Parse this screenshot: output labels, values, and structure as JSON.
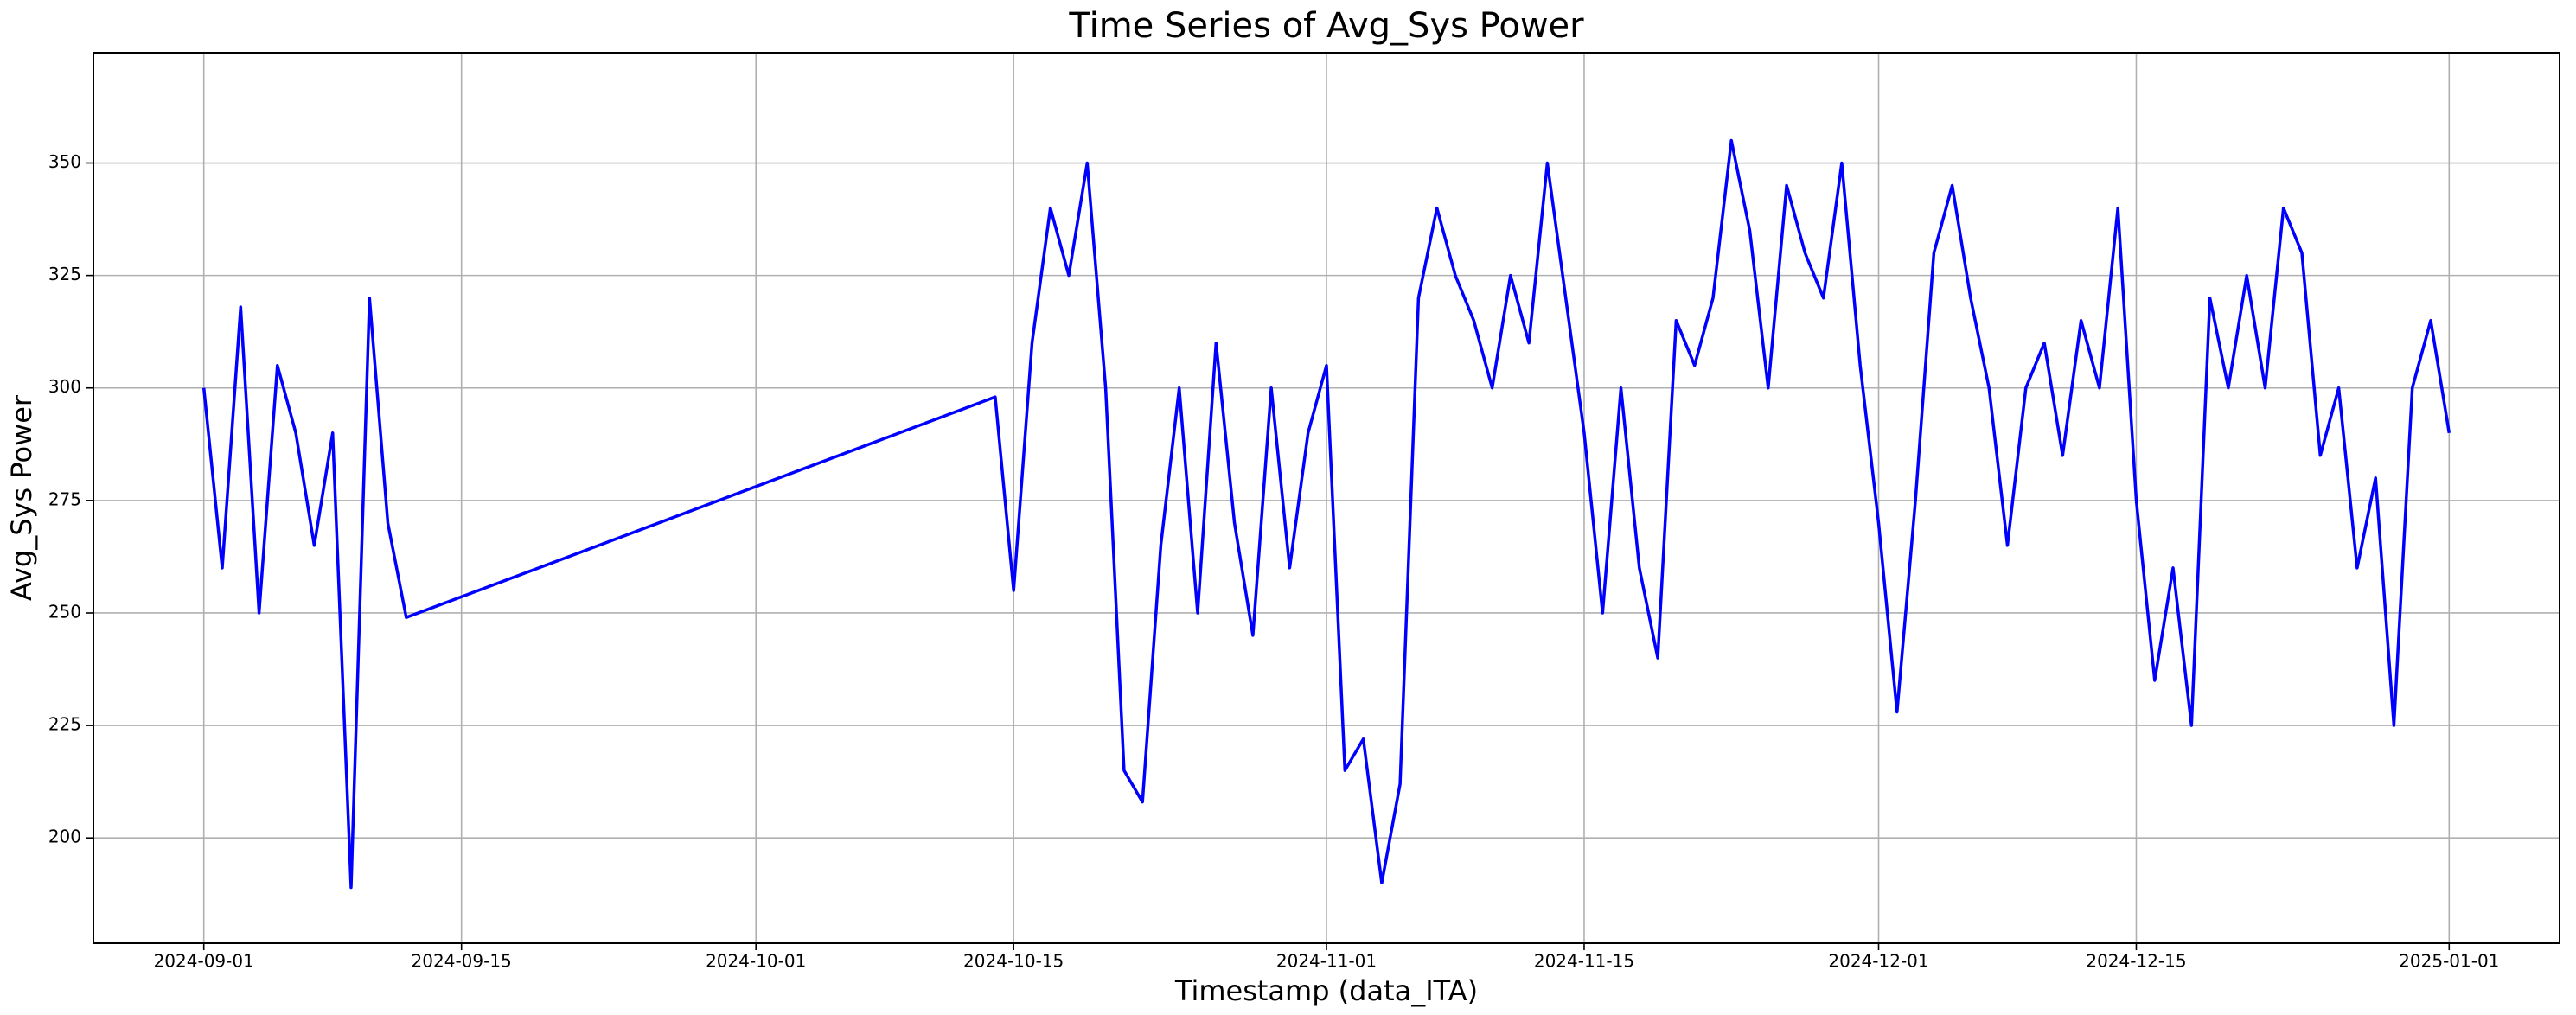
{
  "chart_data": {
    "type": "line",
    "title": "Time Series of Avg_Sys Power",
    "x_label": "Timestamp (data_ITA)",
    "y_label": "Avg_Sys Power",
    "color": "#0000ff",
    "grid": true,
    "x": [
      "2024-09-01",
      "2024-09-02",
      "2024-09-03",
      "2024-09-04",
      "2024-09-05",
      "2024-09-06",
      "2024-09-07",
      "2024-09-08",
      "2024-09-09",
      "2024-09-10",
      "2024-09-11",
      "2024-09-12",
      "2024-10-14",
      "2024-10-15",
      "2024-10-16",
      "2024-10-17",
      "2024-10-18",
      "2024-10-19",
      "2024-10-20",
      "2024-10-21",
      "2024-10-22",
      "2024-10-23",
      "2024-10-24",
      "2024-10-25",
      "2024-10-26",
      "2024-10-27",
      "2024-10-28",
      "2024-10-29",
      "2024-10-30",
      "2024-10-31",
      "2024-11-01",
      "2024-11-02",
      "2024-11-03",
      "2024-11-04",
      "2024-11-05",
      "2024-11-06",
      "2024-11-07",
      "2024-11-08",
      "2024-11-09",
      "2024-11-10",
      "2024-11-11",
      "2024-11-12",
      "2024-11-13",
      "2024-11-14",
      "2024-11-15",
      "2024-11-16",
      "2024-11-17",
      "2024-11-18",
      "2024-11-19",
      "2024-11-20",
      "2024-11-21",
      "2024-11-22",
      "2024-11-23",
      "2024-11-24",
      "2024-11-25",
      "2024-11-26",
      "2024-11-27",
      "2024-11-28",
      "2024-11-29",
      "2024-11-30",
      "2024-12-01",
      "2024-12-02",
      "2024-12-03",
      "2024-12-04",
      "2024-12-05",
      "2024-12-06",
      "2024-12-07",
      "2024-12-08",
      "2024-12-09",
      "2024-12-10",
      "2024-12-11",
      "2024-12-12",
      "2024-12-13",
      "2024-12-14",
      "2024-12-15",
      "2024-12-16",
      "2024-12-17",
      "2024-12-18",
      "2024-12-19",
      "2024-12-20",
      "2024-12-21",
      "2024-12-22",
      "2024-12-23",
      "2024-12-24",
      "2024-12-25",
      "2024-12-26",
      "2024-12-27",
      "2024-12-28",
      "2024-12-29",
      "2024-12-30",
      "2024-12-31",
      "2025-01-01"
    ],
    "values": [
      300,
      260,
      318,
      250,
      305,
      290,
      265,
      290,
      189,
      320,
      270,
      249,
      298,
      255,
      310,
      340,
      325,
      350,
      300,
      215,
      208,
      265,
      300,
      250,
      310,
      270,
      245,
      300,
      260,
      290,
      305,
      215,
      222,
      190,
      212,
      320,
      340,
      325,
      315,
      300,
      325,
      310,
      350,
      320,
      290,
      250,
      300,
      260,
      240,
      315,
      305,
      320,
      355,
      335,
      300,
      345,
      330,
      320,
      350,
      305,
      270,
      228,
      275,
      330,
      345,
      320,
      300,
      265,
      300,
      310,
      285,
      315,
      300,
      340,
      275,
      235,
      260,
      225,
      320,
      300,
      325,
      300,
      340,
      330,
      285,
      300,
      260,
      280,
      225,
      300,
      315,
      290
    ],
    "xlim": [
      "2024-08-26",
      "2025-01-07"
    ],
    "xticks": [
      "2024-09-01",
      "2024-09-15",
      "2024-10-01",
      "2024-10-15",
      "2024-11-01",
      "2024-11-15",
      "2024-12-01",
      "2024-12-15",
      "2025-01-01"
    ],
    "ylim": [
      176.6,
      374.5
    ],
    "yticks": [
      200,
      225,
      250,
      275,
      300,
      325,
      350
    ]
  }
}
